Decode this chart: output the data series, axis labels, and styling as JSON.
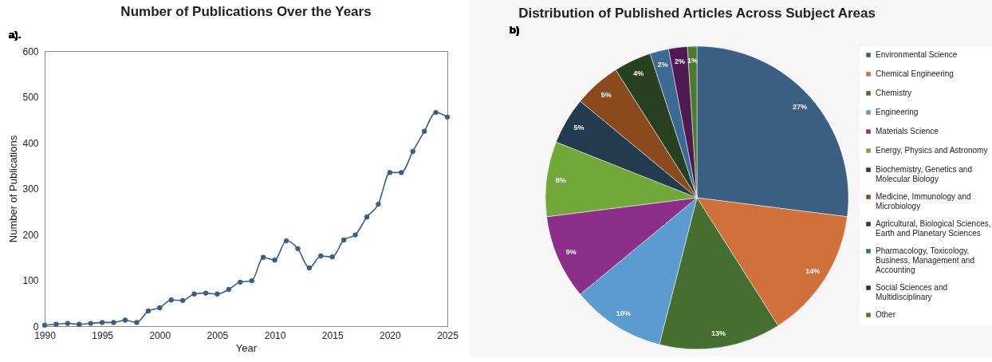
{
  "chart_data": [
    {
      "type": "line",
      "title": "Number of Publications Over the Years",
      "xlabel": "Year",
      "ylabel": "Number of Publications",
      "annotations": [
        "a)."
      ],
      "x": [
        1990,
        1991,
        1992,
        1993,
        1994,
        1995,
        1996,
        1997,
        1998,
        1999,
        2000,
        2001,
        2002,
        2003,
        2004,
        2005,
        2006,
        2007,
        2008,
        2009,
        2010,
        2011,
        2012,
        2013,
        2014,
        2015,
        2016,
        2017,
        2018,
        2019,
        2020,
        2021,
        2022,
        2023,
        2024,
        2025
      ],
      "series": [
        {
          "color": "#3b5f82",
          "values": [
            2,
            4,
            6,
            4,
            6,
            8,
            8,
            13,
            8,
            33,
            40,
            57,
            56,
            70,
            72,
            70,
            80,
            96,
            99,
            150,
            144,
            186,
            169,
            127,
            153,
            151,
            188,
            199,
            238,
            266,
            335,
            335,
            381,
            425,
            466,
            456
          ]
        }
      ],
      "xlim": [
        1990,
        2025
      ],
      "xticks": [
        1990,
        1995,
        2000,
        2005,
        2010,
        2015,
        2020,
        2025
      ],
      "ylim": [
        0,
        600
      ],
      "yticks": [
        0,
        100,
        200,
        300,
        400,
        500,
        600
      ],
      "marker": "circle"
    },
    {
      "type": "pie",
      "title": "Distribution of Published Articles Across Subject Areas",
      "annotations": [
        "b)"
      ],
      "categories": [
        "Environmental Science",
        "Chemical Engineering",
        "Chemistry",
        "Engineering",
        "Materials Science",
        "Energy, Physics and Astronomy",
        "Biochemistry, Genetics and Molecular Biology",
        "Medicine, Immunology and Microbiology",
        "Agricultural, Biological Sciences, Earth and Planetary Sciences",
        "Pharmacology, Toxicology, Business, Management and Accounting",
        "Social Sciences and Multidisciplinary",
        "Other"
      ],
      "values": [
        27,
        14,
        13,
        10,
        9,
        8,
        5,
        5,
        4,
        2,
        2,
        1
      ],
      "colors": [
        "#3b5f82",
        "#d0703a",
        "#456e30",
        "#5b9bd0",
        "#8b2f8b",
        "#72a83a",
        "#243a4e",
        "#8b4a1e",
        "#27401f",
        "#3c6a92",
        "#4e1a52",
        "#4e7a2e"
      ],
      "value_labels": [
        "27%",
        "14%",
        "13%",
        "10%",
        "9%",
        "8%",
        "5%",
        "5%",
        "4%",
        "2%",
        "2%",
        "1%"
      ],
      "legend": "right"
    }
  ]
}
